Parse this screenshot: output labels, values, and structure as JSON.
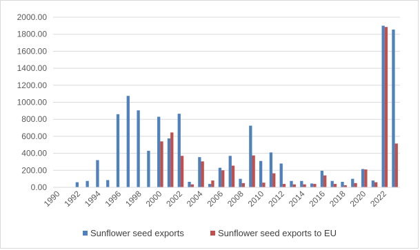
{
  "chart_data": {
    "type": "bar",
    "x": [
      1990,
      1991,
      1992,
      1993,
      1994,
      1995,
      1996,
      1997,
      1998,
      1999,
      2000,
      2001,
      2002,
      2003,
      2004,
      2005,
      2006,
      2007,
      2008,
      2009,
      2010,
      2011,
      2012,
      2013,
      2014,
      2015,
      2016,
      2017,
      2018,
      2019,
      2020,
      2021,
      2022,
      2023
    ],
    "x_tick_labels": [
      "1990",
      "1992",
      "1994",
      "1996",
      "1998",
      "2000",
      "2002",
      "2004",
      "2006",
      "2008",
      "2010",
      "2012",
      "2014",
      "2016",
      "2018",
      "2020",
      "2022"
    ],
    "series": [
      {
        "name": "Sunflower seed exports",
        "color": "#4f81bd",
        "values": [
          0,
          0,
          60,
          75,
          320,
          85,
          860,
          1075,
          905,
          430,
          830,
          575,
          865,
          65,
          355,
          40,
          230,
          370,
          100,
          725,
          310,
          410,
          280,
          75,
          75,
          45,
          195,
          75,
          65,
          100,
          215,
          80,
          1900,
          1855
        ]
      },
      {
        "name": "Sunflower seed exports to EU",
        "color": "#c0504d",
        "values": [
          0,
          0,
          0,
          0,
          0,
          0,
          0,
          0,
          0,
          0,
          540,
          645,
          370,
          35,
          305,
          80,
          200,
          255,
          50,
          375,
          55,
          165,
          40,
          35,
          35,
          40,
          140,
          40,
          25,
          50,
          210,
          60,
          1885,
          515
        ]
      }
    ],
    "y_tick_labels": [
      "0.00",
      "200.00",
      "400.00",
      "600.00",
      "800.00",
      "1000.00",
      "1200.00",
      "1400.00",
      "1600.00",
      "1800.00",
      "2000.00"
    ],
    "ylim": [
      0,
      2000
    ],
    "grid": true,
    "legend_position": "bottom"
  }
}
